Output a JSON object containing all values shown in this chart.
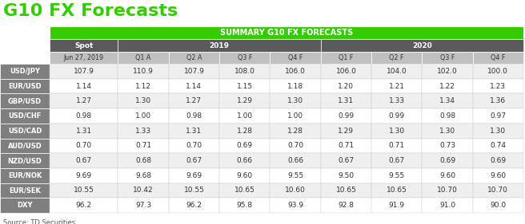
{
  "title": "G10 FX Forecasts",
  "title_color": "#33cc00",
  "source": "Source: TD Securities",
  "header_banner": "SUMMARY G10 FX FORECASTS",
  "header_banner_bg": "#33cc00",
  "sub_headers": [
    "Jun 27, 2019",
    "Q1 A",
    "Q2 A",
    "Q3 F",
    "Q4 F",
    "Q1 F",
    "Q2 F",
    "Q3 F",
    "Q4 F"
  ],
  "row_labels": [
    "USD/JPY",
    "EUR/USD",
    "GBP/USD",
    "USD/CHF",
    "USD/CAD",
    "AUD/USD",
    "NZD/USD",
    "EUR/NOK",
    "EUR/SEK",
    "DXY"
  ],
  "row_label_bg": "#7f7f7f",
  "table_data": [
    [
      "107.9",
      "110.9",
      "107.9",
      "108.0",
      "106.0",
      "106.0",
      "104.0",
      "102.0",
      "100.0"
    ],
    [
      "1.14",
      "1.12",
      "1.14",
      "1.15",
      "1.18",
      "1.20",
      "1.21",
      "1.22",
      "1.23"
    ],
    [
      "1.27",
      "1.30",
      "1.27",
      "1.29",
      "1.30",
      "1.31",
      "1.33",
      "1.34",
      "1.36"
    ],
    [
      "0.98",
      "1.00",
      "0.98",
      "1.00",
      "1.00",
      "0.99",
      "0.99",
      "0.98",
      "0.97"
    ],
    [
      "1.31",
      "1.33",
      "1.31",
      "1.28",
      "1.28",
      "1.29",
      "1.30",
      "1.30",
      "1.30"
    ],
    [
      "0.70",
      "0.71",
      "0.70",
      "0.69",
      "0.70",
      "0.71",
      "0.71",
      "0.73",
      "0.74"
    ],
    [
      "0.67",
      "0.68",
      "0.67",
      "0.66",
      "0.66",
      "0.67",
      "0.67",
      "0.69",
      "0.69"
    ],
    [
      "9.69",
      "9.68",
      "9.69",
      "9.60",
      "9.55",
      "9.50",
      "9.55",
      "9.60",
      "9.60"
    ],
    [
      "10.55",
      "10.42",
      "10.55",
      "10.65",
      "10.60",
      "10.65",
      "10.65",
      "10.70",
      "10.70"
    ],
    [
      "96.2",
      "97.3",
      "96.2",
      "95.8",
      "93.9",
      "92.8",
      "91.9",
      "91.0",
      "90.0"
    ]
  ],
  "row_bg_even": "#efefef",
  "row_bg_odd": "#ffffff",
  "year_header_bg": "#5a5a5a",
  "subheader_bg": "#c0c0c0",
  "figsize": [
    6.56,
    2.81
  ],
  "dpi": 100
}
